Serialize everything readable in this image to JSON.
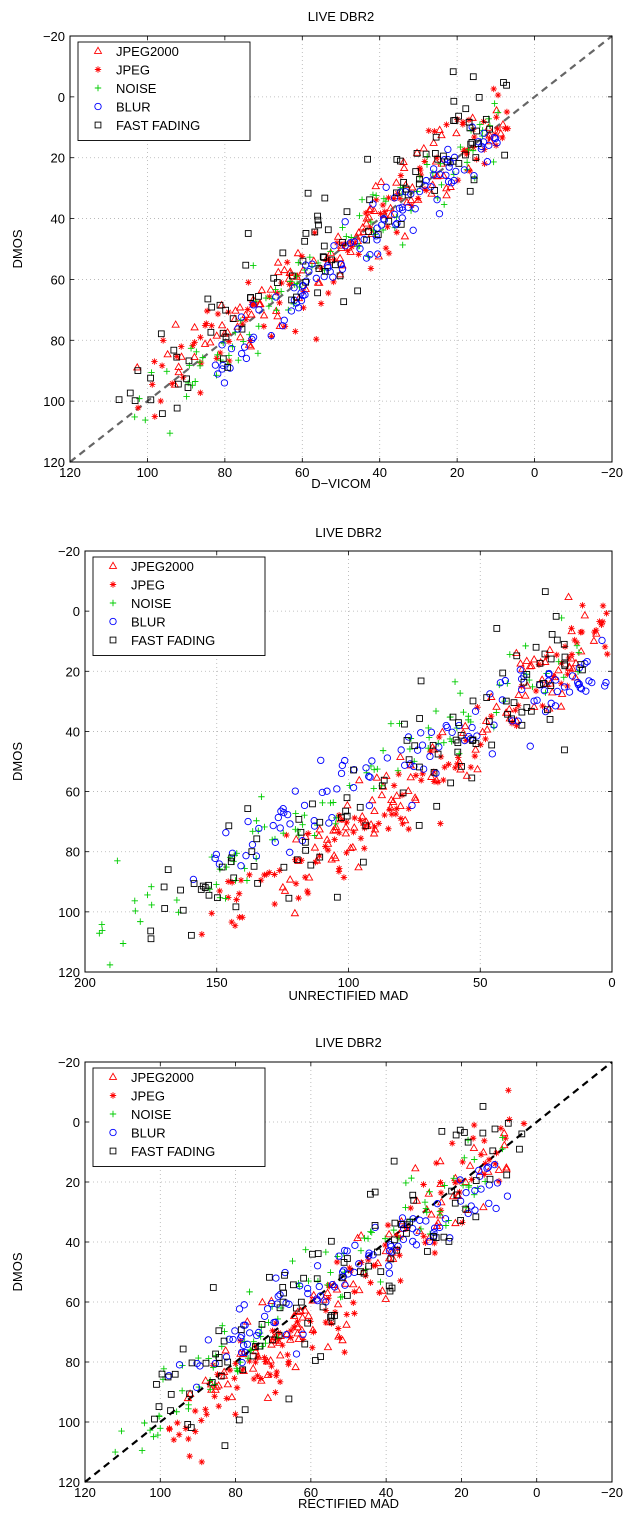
{
  "chart_data": [
    {
      "type": "scatter",
      "title": "LIVE DBR2",
      "xlabel": "D−VICOM",
      "ylabel": "DMOS",
      "xlim": [
        120,
        -20
      ],
      "ylim": [
        120,
        -20
      ],
      "x_reversed": true,
      "y_reversed": true,
      "xticks": [
        "120",
        "100",
        "80",
        "60",
        "40",
        "20",
        "0",
        "−20"
      ],
      "yticks": [
        "−20",
        "0",
        "20",
        "40",
        "60",
        "80",
        "100",
        "120"
      ],
      "grid": true,
      "legend_position": "top-left",
      "reference_line": {
        "style": "dashed",
        "color": "#666666"
      },
      "series": [
        {
          "name": "JPEG2000",
          "marker": "triangle",
          "color": "#ff0000",
          "trend": [
            {
              "x": 97,
              "y": 93
            },
            {
              "x": 60,
              "y": 60
            },
            {
              "x": 10,
              "y": 7
            }
          ],
          "count": 110,
          "spread": 6
        },
        {
          "name": "JPEG",
          "marker": "asterisk",
          "color": "#ff0000",
          "trend": [
            {
              "x": 100,
              "y": 95
            },
            {
              "x": 60,
              "y": 60
            },
            {
              "x": 8,
              "y": 4
            }
          ],
          "count": 120,
          "spread": 6
        },
        {
          "name": "NOISE",
          "marker": "plus",
          "color": "#00cc00",
          "trend": [
            {
              "x": 101,
              "y": 108
            },
            {
              "x": 60,
              "y": 60
            },
            {
              "x": 10,
              "y": 10
            }
          ],
          "count": 100,
          "spread": 5
        },
        {
          "name": "BLUR",
          "marker": "circle",
          "color": "#0000ff",
          "trend": [
            {
              "x": 84,
              "y": 90
            },
            {
              "x": 50,
              "y": 52
            },
            {
              "x": 10,
              "y": 13
            }
          ],
          "count": 110,
          "spread": 4
        },
        {
          "name": "FAST FADING",
          "marker": "square",
          "color": "#000000",
          "trend": [
            {
              "x": 104,
              "y": 100
            },
            {
              "x": 60,
              "y": 58
            },
            {
              "x": 10,
              "y": 7
            }
          ],
          "count": 110,
          "spread": 9
        }
      ]
    },
    {
      "type": "scatter",
      "title": "LIVE DBR2",
      "xlabel": "UNRECTIFIED MAD",
      "ylabel": "DMOS",
      "xlim": [
        200,
        0
      ],
      "ylim": [
        120,
        -20
      ],
      "x_reversed": true,
      "y_reversed": true,
      "xticks": [
        "200",
        "150",
        "100",
        "50",
        "0"
      ],
      "yticks": [
        "−20",
        "0",
        "20",
        "40",
        "60",
        "80",
        "100",
        "120"
      ],
      "grid": true,
      "legend_position": "top-left",
      "series": [
        {
          "name": "JPEG2000",
          "marker": "triangle",
          "color": "#ff0000",
          "trend": [
            {
              "x": 130,
              "y": 92
            },
            {
              "x": 80,
              "y": 60
            },
            {
              "x": 5,
              "y": 8
            }
          ],
          "count": 110,
          "spread": 6
        },
        {
          "name": "JPEG",
          "marker": "asterisk",
          "color": "#ff0000",
          "trend": [
            {
              "x": 158,
              "y": 105
            },
            {
              "x": 80,
              "y": 65
            },
            {
              "x": 2,
              "y": 3
            }
          ],
          "count": 120,
          "spread": 6
        },
        {
          "name": "NOISE",
          "marker": "plus",
          "color": "#00cc00",
          "trend": [
            {
              "x": 195,
              "y": 108
            },
            {
              "x": 110,
              "y": 65
            },
            {
              "x": 10,
              "y": 12
            }
          ],
          "count": 100,
          "spread": 6
        },
        {
          "name": "BLUR",
          "marker": "circle",
          "color": "#0000ff",
          "trend": [
            {
              "x": 162,
              "y": 90
            },
            {
              "x": 90,
              "y": 52
            },
            {
              "x": 5,
              "y": 20
            }
          ],
          "count": 110,
          "spread": 5
        },
        {
          "name": "FAST FADING",
          "marker": "square",
          "color": "#000000",
          "trend": [
            {
              "x": 175,
              "y": 102
            },
            {
              "x": 80,
              "y": 55
            },
            {
              "x": 10,
              "y": 10
            }
          ],
          "count": 110,
          "spread": 10
        }
      ]
    },
    {
      "type": "scatter",
      "title": "LIVE DBR2",
      "xlabel": "RECTIFIED MAD",
      "ylabel": "DMOS",
      "xlim": [
        120,
        -20
      ],
      "ylim": [
        120,
        -20
      ],
      "x_reversed": true,
      "y_reversed": true,
      "xticks": [
        "120",
        "100",
        "80",
        "60",
        "40",
        "20",
        "0",
        "−20"
      ],
      "yticks": [
        "−20",
        "0",
        "20",
        "40",
        "60",
        "80",
        "100",
        "120"
      ],
      "grid": true,
      "legend_position": "top-left",
      "reference_line": {
        "style": "dashed",
        "color": "#000000"
      },
      "series": [
        {
          "name": "JPEG2000",
          "marker": "triangle",
          "color": "#ff0000",
          "trend": [
            {
              "x": 90,
              "y": 92
            },
            {
              "x": 55,
              "y": 60
            },
            {
              "x": 8,
              "y": 8
            }
          ],
          "count": 110,
          "spread": 6
        },
        {
          "name": "JPEG",
          "marker": "asterisk",
          "color": "#ff0000",
          "trend": [
            {
              "x": 98,
              "y": 105
            },
            {
              "x": 55,
              "y": 62
            },
            {
              "x": 7,
              "y": 3
            }
          ],
          "count": 120,
          "spread": 6
        },
        {
          "name": "NOISE",
          "marker": "plus",
          "color": "#00cc00",
          "trend": [
            {
              "x": 110,
              "y": 108
            },
            {
              "x": 65,
              "y": 62
            },
            {
              "x": 10,
              "y": 12
            }
          ],
          "count": 100,
          "spread": 6
        },
        {
          "name": "BLUR",
          "marker": "circle",
          "color": "#0000ff",
          "trend": [
            {
              "x": 97,
              "y": 88
            },
            {
              "x": 55,
              "y": 52
            },
            {
              "x": 8,
              "y": 20
            }
          ],
          "count": 110,
          "spread": 5
        },
        {
          "name": "FAST FADING",
          "marker": "square",
          "color": "#000000",
          "trend": [
            {
              "x": 103,
              "y": 100
            },
            {
              "x": 55,
              "y": 55
            },
            {
              "x": 10,
              "y": 10
            }
          ],
          "count": 110,
          "spread": 10
        }
      ]
    }
  ]
}
